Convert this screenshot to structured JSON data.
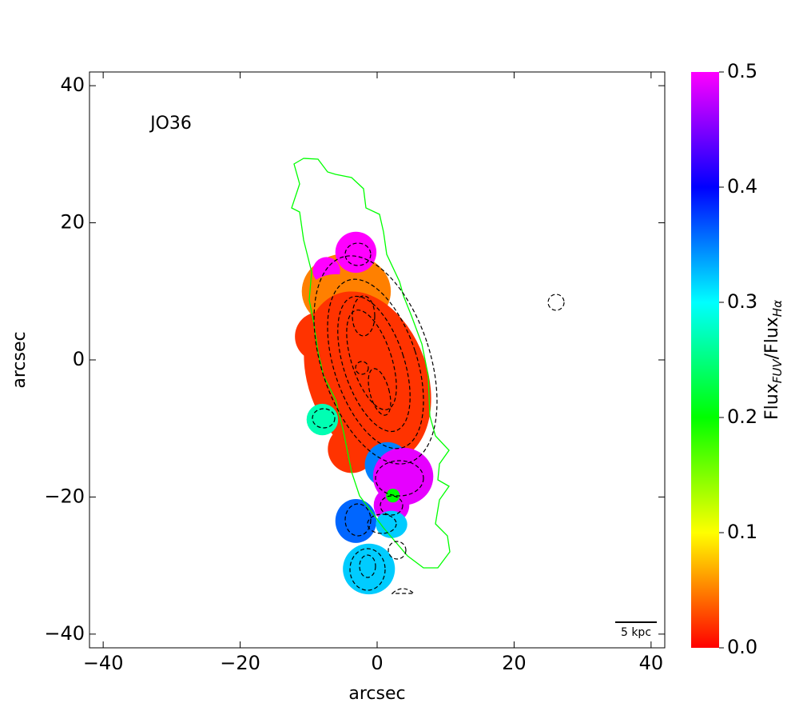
{
  "chart_data": {
    "type": "map",
    "annotation": "JO36",
    "xlabel": "arcsec",
    "ylabel": "arcsec",
    "xlim": [
      -42,
      42
    ],
    "ylim": [
      -42,
      42
    ],
    "xticks": [
      {
        "value": -40,
        "label": "−40"
      },
      {
        "value": -20,
        "label": "−20"
      },
      0,
      20,
      40
    ],
    "yticks": [
      {
        "value": -40,
        "label": "−40"
      },
      {
        "value": -20,
        "label": "−20"
      },
      0,
      20,
      40
    ],
    "scalebar": "5 kpc",
    "colorbar": {
      "label_main": "Flux",
      "label_sub1": "FUV",
      "label_mid": "/Flux",
      "label_sub2": "Hα",
      "lim": [
        0,
        0.5
      ],
      "ticks": [
        {
          "value": 0,
          "label": "0.0"
        },
        0.1,
        0.2,
        0.3,
        0.4,
        0.5
      ],
      "colors": [
        "#ff0000",
        "#ffff00",
        "#00ff00",
        "#00ffff",
        "#0000ff",
        "#ff00ff"
      ]
    },
    "regions": [
      {
        "x": -4.5,
        "y": 10,
        "rx": 6.5,
        "ry": 5.5,
        "angle": 0,
        "value": 0.05
      },
      {
        "x": -3.1,
        "y": 15.7,
        "rx": 3,
        "ry": 3,
        "angle": 0,
        "value": 0.5
      },
      {
        "x": -7.4,
        "y": 13,
        "rx": 2,
        "ry": 2,
        "angle": 0,
        "value": 0.5
      },
      {
        "x": -6,
        "y": 9,
        "rx": 4.5,
        "ry": 3.5,
        "angle": 0,
        "value": 0.05
      },
      {
        "x": -1.4,
        "y": -2.5,
        "rx": 8.7,
        "ry": 12.9,
        "angle": 20,
        "value": 0.02
      },
      {
        "x": -8.4,
        "y": 3.4,
        "rx": 3.6,
        "ry": 3.6,
        "angle": 0,
        "value": 0.02
      },
      {
        "x": -3.7,
        "y": -13,
        "rx": 3.5,
        "ry": 3.5,
        "angle": 0,
        "value": 0.02
      },
      {
        "x": -8,
        "y": -8.7,
        "rx": 2.3,
        "ry": 2.3,
        "angle": 0,
        "value": 0.27
      },
      {
        "x": 1.5,
        "y": -15.3,
        "rx": 3.3,
        "ry": 3.3,
        "angle": 0,
        "value": 0.35
      },
      {
        "x": 3.8,
        "y": -17,
        "rx": 4.4,
        "ry": 4.2,
        "angle": 0,
        "value": 0.49
      },
      {
        "x": 2.1,
        "y": -21.2,
        "rx": 2.6,
        "ry": 2.6,
        "angle": 0,
        "value": 0.49
      },
      {
        "x": 2.3,
        "y": -19.8,
        "rx": 1,
        "ry": 1,
        "angle": 0,
        "value": 0.2
      },
      {
        "x": -3.1,
        "y": -23.5,
        "rx": 3,
        "ry": 3.2,
        "angle": 0,
        "value": 0.36
      },
      {
        "x": 2.1,
        "y": -24,
        "rx": 2.3,
        "ry": 2,
        "angle": 0,
        "value": 0.32
      },
      {
        "x": -1.2,
        "y": -30.5,
        "rx": 3.8,
        "ry": 3.7,
        "angle": 0,
        "value": 0.32
      }
    ]
  }
}
